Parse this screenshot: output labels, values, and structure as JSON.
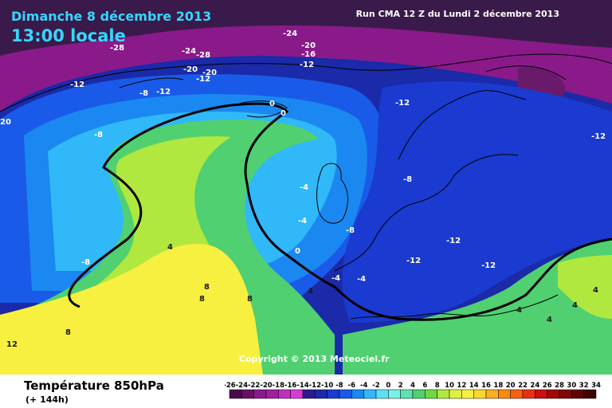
{
  "header": {
    "date": "Dimanche 8 décembre 2013",
    "time": "13:00 locale",
    "run": "Run CMA 12 Z du Lundi 2 décembre 2013"
  },
  "copyright": "Copyright © 2013 Meteociel.fr",
  "footer": {
    "variable": "Température 850hPa",
    "lead": "(+ 144h)"
  },
  "legend": {
    "ticks": [
      "-26",
      "-24",
      "-22",
      "-20",
      "-18",
      "-16",
      "-14",
      "-12",
      "-10",
      "-8",
      "-6",
      "-4",
      "-2",
      "0",
      "2",
      "4",
      "6",
      "8",
      "10",
      "12",
      "14",
      "16",
      "18",
      "20",
      "22",
      "24",
      "26",
      "28",
      "30",
      "32",
      "34"
    ],
    "colors": [
      "#4a0a4a",
      "#6a0f6a",
      "#8a1a8a",
      "#a020a0",
      "#c030c0",
      "#d83ad8",
      "#2a1a8c",
      "#1a2aa8",
      "#1a3ad0",
      "#1a5ae8",
      "#1a88f0",
      "#30b8f8",
      "#5ce0f8",
      "#7af0e8",
      "#60e0b0",
      "#50d070",
      "#70d840",
      "#b0e840",
      "#e0f040",
      "#f8f040",
      "#f8d830",
      "#f8b020",
      "#f88a10",
      "#f86010",
      "#e83010",
      "#c81010",
      "#a00a0a",
      "#800808",
      "#600404",
      "#400202"
    ]
  },
  "map_labels": [
    {
      "text": "-24",
      "temp": -24
    },
    {
      "text": "-20",
      "temp": -20
    },
    {
      "text": "-16",
      "temp": -16
    },
    {
      "text": "-12",
      "temp": -12
    },
    {
      "text": "-28",
      "temp": -28
    },
    {
      "text": "-24",
      "temp": -24
    },
    {
      "text": "-28",
      "temp": -28
    },
    {
      "text": "-20",
      "temp": -20
    },
    {
      "text": "-20",
      "temp": -20
    },
    {
      "text": "-12",
      "temp": -12
    },
    {
      "text": "-12",
      "temp": -12
    },
    {
      "text": "-8",
      "temp": -8
    },
    {
      "text": "-12",
      "temp": -12
    },
    {
      "text": "0",
      "temp": 0
    },
    {
      "text": "0",
      "temp": 0
    },
    {
      "text": "-12",
      "temp": -12
    },
    {
      "text": "-12",
      "temp": -12
    },
    {
      "text": "-8",
      "temp": -8
    },
    {
      "text": "-8",
      "temp": -8
    },
    {
      "text": "-4",
      "temp": -4
    },
    {
      "text": "-4",
      "temp": -4
    },
    {
      "text": "-8",
      "temp": -8
    },
    {
      "text": "-12",
      "temp": -12
    },
    {
      "text": "-12",
      "temp": -12
    },
    {
      "text": "-12",
      "temp": -12
    },
    {
      "text": "0",
      "temp": 0
    },
    {
      "text": "-4",
      "temp": -4
    },
    {
      "text": "-4",
      "temp": -4
    },
    {
      "text": "4",
      "temp": 4
    },
    {
      "text": "4",
      "temp": 4
    },
    {
      "text": "8",
      "temp": 8
    },
    {
      "text": "8",
      "temp": 8
    },
    {
      "text": "8",
      "temp": 8
    },
    {
      "text": "8",
      "temp": 8
    },
    {
      "text": "12",
      "temp": 12
    },
    {
      "text": "4",
      "temp": 4
    },
    {
      "text": "4",
      "temp": 4
    },
    {
      "text": "4",
      "temp": 4
    },
    {
      "text": "4",
      "temp": 4
    },
    {
      "text": "-8",
      "temp": -8
    },
    {
      "text": "20",
      "temp": 20
    }
  ]
}
